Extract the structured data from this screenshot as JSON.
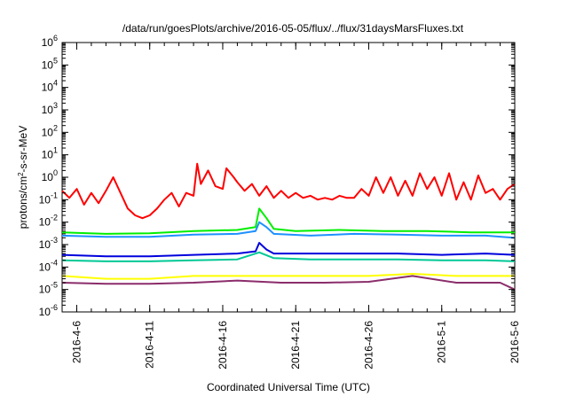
{
  "chart_data": {
    "type": "line",
    "title": "/data/run/goesPlots/archive/2016-05-05/flux/../flux/31daysMarsFluxes.txt",
    "xlabel": "Coordinated Universal Time (UTC)",
    "ylabel": "protons/cm²-s-sr-MeV",
    "ylabel_base": "protons/cm",
    "ylabel_sup": "2",
    "ylabel_rest": "-s-sr-MeV",
    "yscale": "log",
    "ylim": [
      1e-06,
      1000000.0
    ],
    "xlim": [
      "2016-04-05",
      "2016-05-06"
    ],
    "grid": false,
    "legend": "none",
    "yticks": [
      {
        "base": "10",
        "exp": "-6",
        "value": 1e-06
      },
      {
        "base": "10",
        "exp": "-5",
        "value": 1e-05
      },
      {
        "base": "10",
        "exp": "-4",
        "value": 0.0001
      },
      {
        "base": "10",
        "exp": "-3",
        "value": 0.001
      },
      {
        "base": "10",
        "exp": "-2",
        "value": 0.01
      },
      {
        "base": "10",
        "exp": "-1",
        "value": 0.1
      },
      {
        "base": "10",
        "exp": "0",
        "value": 1
      },
      {
        "base": "10",
        "exp": "1",
        "value": 10
      },
      {
        "base": "10",
        "exp": "2",
        "value": 100
      },
      {
        "base": "10",
        "exp": "3",
        "value": 1000
      },
      {
        "base": "10",
        "exp": "4",
        "value": 10000
      },
      {
        "base": "10",
        "exp": "5",
        "value": 100000
      },
      {
        "base": "10",
        "exp": "6",
        "value": 1000000
      }
    ],
    "xticks": [
      {
        "label": "2016-4-6",
        "date": "2016-04-06"
      },
      {
        "label": "2016-4-11",
        "date": "2016-04-11"
      },
      {
        "label": "2016-4-16",
        "date": "2016-04-16"
      },
      {
        "label": "2016-4-21",
        "date": "2016-04-21"
      },
      {
        "label": "2016-4-26",
        "date": "2016-04-26"
      },
      {
        "label": "2016-5-1",
        "date": "2016-05-01"
      },
      {
        "label": "2016-5-6",
        "date": "2016-05-06"
      }
    ],
    "series": [
      {
        "color": "#ff0000",
        "points": [
          [
            "2016-04-05",
            0.25
          ],
          [
            "2016-04-05T12:00",
            0.12
          ],
          [
            "2016-04-06",
            0.3
          ],
          [
            "2016-04-06T12:00",
            0.06
          ],
          [
            "2016-04-07",
            0.2
          ],
          [
            "2016-04-07T12:00",
            0.07
          ],
          [
            "2016-04-08",
            0.25
          ],
          [
            "2016-04-08T12:00",
            1.0
          ],
          [
            "2016-04-09",
            0.2
          ],
          [
            "2016-04-09T12:00",
            0.04
          ],
          [
            "2016-04-10",
            0.02
          ],
          [
            "2016-04-10T12:00",
            0.015
          ],
          [
            "2016-04-11",
            0.02
          ],
          [
            "2016-04-11T12:00",
            0.04
          ],
          [
            "2016-04-12",
            0.1
          ],
          [
            "2016-04-12T12:00",
            0.2
          ],
          [
            "2016-04-13",
            0.05
          ],
          [
            "2016-04-13T12:00",
            0.2
          ],
          [
            "2016-04-14",
            0.15
          ],
          [
            "2016-04-14T06:00",
            4.0
          ],
          [
            "2016-04-14T12:00",
            0.5
          ],
          [
            "2016-04-15",
            2.0
          ],
          [
            "2016-04-15T12:00",
            0.4
          ],
          [
            "2016-04-16",
            0.3
          ],
          [
            "2016-04-16T06:00",
            2.5
          ],
          [
            "2016-04-16T18:00",
            1.0
          ],
          [
            "2016-04-17",
            0.6
          ],
          [
            "2016-04-17T12:00",
            0.25
          ],
          [
            "2016-04-18",
            0.5
          ],
          [
            "2016-04-18T12:00",
            0.15
          ],
          [
            "2016-04-19",
            0.4
          ],
          [
            "2016-04-19T12:00",
            0.12
          ],
          [
            "2016-04-20",
            0.25
          ],
          [
            "2016-04-20T12:00",
            0.12
          ],
          [
            "2016-04-21",
            0.2
          ],
          [
            "2016-04-21T12:00",
            0.12
          ],
          [
            "2016-04-22",
            0.15
          ],
          [
            "2016-04-22T12:00",
            0.1
          ],
          [
            "2016-04-23",
            0.12
          ],
          [
            "2016-04-23T12:00",
            0.1
          ],
          [
            "2016-04-24",
            0.15
          ],
          [
            "2016-04-24T12:00",
            0.12
          ],
          [
            "2016-04-25",
            0.12
          ],
          [
            "2016-04-25T12:00",
            0.3
          ],
          [
            "2016-04-26",
            0.15
          ],
          [
            "2016-04-26T12:00",
            1.0
          ],
          [
            "2016-04-27",
            0.2
          ],
          [
            "2016-04-27T12:00",
            1.0
          ],
          [
            "2016-04-28",
            0.15
          ],
          [
            "2016-04-28T12:00",
            0.7
          ],
          [
            "2016-04-29",
            0.15
          ],
          [
            "2016-04-29T12:00",
            1.5
          ],
          [
            "2016-04-30",
            0.3
          ],
          [
            "2016-04-30T12:00",
            1.0
          ],
          [
            "2016-05-01",
            0.15
          ],
          [
            "2016-05-01T12:00",
            1.5
          ],
          [
            "2016-05-02",
            0.1
          ],
          [
            "2016-05-02T12:00",
            0.6
          ],
          [
            "2016-05-03",
            0.1
          ],
          [
            "2016-05-03T12:00",
            1.2
          ],
          [
            "2016-05-04",
            0.2
          ],
          [
            "2016-05-04T12:00",
            0.3
          ],
          [
            "2016-05-05",
            0.1
          ],
          [
            "2016-05-05T12:00",
            0.3
          ],
          [
            "2016-05-06",
            0.5
          ]
        ]
      },
      {
        "color": "#00ee00",
        "points": [
          [
            "2016-04-05",
            0.0035
          ],
          [
            "2016-04-08",
            0.003
          ],
          [
            "2016-04-11",
            0.0032
          ],
          [
            "2016-04-14",
            0.004
          ],
          [
            "2016-04-17",
            0.0045
          ],
          [
            "2016-04-18T06:00",
            0.006
          ],
          [
            "2016-04-18T12:00",
            0.04
          ],
          [
            "2016-04-19",
            0.015
          ],
          [
            "2016-04-19T12:00",
            0.005
          ],
          [
            "2016-04-21",
            0.004
          ],
          [
            "2016-04-24",
            0.0045
          ],
          [
            "2016-04-27",
            0.004
          ],
          [
            "2016-04-30",
            0.004
          ],
          [
            "2016-05-03",
            0.0035
          ],
          [
            "2016-05-06",
            0.0035
          ]
        ]
      },
      {
        "color": "#1e90ff",
        "points": [
          [
            "2016-04-05",
            0.0025
          ],
          [
            "2016-04-08",
            0.0022
          ],
          [
            "2016-04-11",
            0.0022
          ],
          [
            "2016-04-14",
            0.0028
          ],
          [
            "2016-04-17",
            0.003
          ],
          [
            "2016-04-18T06:00",
            0.004
          ],
          [
            "2016-04-18T12:00",
            0.01
          ],
          [
            "2016-04-19",
            0.006
          ],
          [
            "2016-04-19T12:00",
            0.003
          ],
          [
            "2016-04-22",
            0.0025
          ],
          [
            "2016-04-25",
            0.003
          ],
          [
            "2016-04-28",
            0.0028
          ],
          [
            "2016-05-01",
            0.0025
          ],
          [
            "2016-05-04",
            0.0025
          ],
          [
            "2016-05-06",
            0.002
          ]
        ]
      },
      {
        "color": "#0000dd",
        "points": [
          [
            "2016-04-05",
            0.00035
          ],
          [
            "2016-04-08",
            0.0003
          ],
          [
            "2016-04-11",
            0.0003
          ],
          [
            "2016-04-14",
            0.00035
          ],
          [
            "2016-04-17",
            0.0004
          ],
          [
            "2016-04-18T06:00",
            0.0005
          ],
          [
            "2016-04-18T12:00",
            0.0012
          ],
          [
            "2016-04-19",
            0.0006
          ],
          [
            "2016-04-19T12:00",
            0.0004
          ],
          [
            "2016-04-22",
            0.0004
          ],
          [
            "2016-04-25",
            0.0004
          ],
          [
            "2016-04-28",
            0.0004
          ],
          [
            "2016-05-01",
            0.00035
          ],
          [
            "2016-05-04",
            0.0004
          ],
          [
            "2016-05-06",
            0.00035
          ]
        ]
      },
      {
        "color": "#00c896",
        "points": [
          [
            "2016-04-05",
            0.0002
          ],
          [
            "2016-04-08",
            0.00018
          ],
          [
            "2016-04-11",
            0.00018
          ],
          [
            "2016-04-14",
            0.0002
          ],
          [
            "2016-04-17",
            0.00022
          ],
          [
            "2016-04-18T12:00",
            0.00045
          ],
          [
            "2016-04-19T12:00",
            0.00025
          ],
          [
            "2016-04-22",
            0.00022
          ],
          [
            "2016-04-25",
            0.00022
          ],
          [
            "2016-04-28",
            0.00022
          ],
          [
            "2016-05-01",
            0.0002
          ],
          [
            "2016-05-04",
            0.0002
          ],
          [
            "2016-05-06",
            0.00018
          ]
        ]
      },
      {
        "color": "#ffff00",
        "points": [
          [
            "2016-04-05",
            4e-05
          ],
          [
            "2016-04-08",
            3e-05
          ],
          [
            "2016-04-11",
            3e-05
          ],
          [
            "2016-04-14",
            4e-05
          ],
          [
            "2016-04-17",
            4e-05
          ],
          [
            "2016-04-20",
            4e-05
          ],
          [
            "2016-04-23",
            4e-05
          ],
          [
            "2016-04-26",
            4e-05
          ],
          [
            "2016-04-29",
            5e-05
          ],
          [
            "2016-05-02",
            4e-05
          ],
          [
            "2016-05-05",
            4e-05
          ],
          [
            "2016-05-06",
            4e-05
          ]
        ]
      },
      {
        "color": "#8b2d6b",
        "points": [
          [
            "2016-04-05",
            2e-05
          ],
          [
            "2016-04-08",
            1.8e-05
          ],
          [
            "2016-04-11",
            1.8e-05
          ],
          [
            "2016-04-14",
            2e-05
          ],
          [
            "2016-04-17",
            2.5e-05
          ],
          [
            "2016-04-20",
            2e-05
          ],
          [
            "2016-04-23",
            2e-05
          ],
          [
            "2016-04-26",
            2.2e-05
          ],
          [
            "2016-04-29",
            4e-05
          ],
          [
            "2016-05-02",
            2e-05
          ],
          [
            "2016-05-05",
            2e-05
          ],
          [
            "2016-05-06",
            1e-05
          ]
        ]
      }
    ]
  }
}
